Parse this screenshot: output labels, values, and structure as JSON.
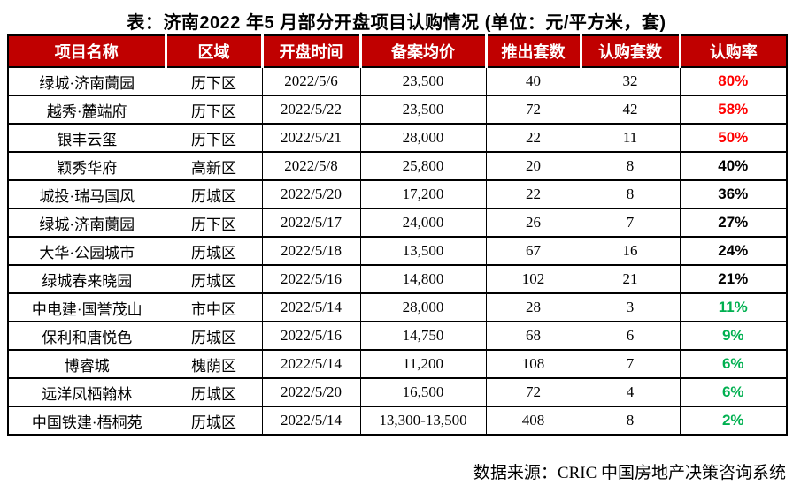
{
  "title": "表：济南2022 年5 月部分开盘项目认购情况 (单位：元/平方米，套)",
  "source": "数据来源：CRIC 中国房地产决策咨询系统",
  "colors": {
    "header_bg": "#C00000",
    "header_text": "#FFFFFF",
    "rate_red": "#FF0000",
    "rate_black": "#000000",
    "rate_green": "#00B050"
  },
  "table": {
    "headers": [
      "项目名称",
      "区域",
      "开盘时间",
      "备案均价",
      "推出套数",
      "认购套数",
      "认购率"
    ],
    "rows": [
      {
        "name": "绿城·济南蘭园",
        "district": "历下区",
        "date": "2022/5/6",
        "price": "23,500",
        "offered": "40",
        "subscribed": "32",
        "rate": "80%",
        "rate_color": "red"
      },
      {
        "name": "越秀·麓端府",
        "district": "历下区",
        "date": "2022/5/22",
        "price": "23,500",
        "offered": "72",
        "subscribed": "42",
        "rate": "58%",
        "rate_color": "red"
      },
      {
        "name": "银丰云玺",
        "district": "历下区",
        "date": "2022/5/21",
        "price": "28,000",
        "offered": "22",
        "subscribed": "11",
        "rate": "50%",
        "rate_color": "red"
      },
      {
        "name": "颖秀华府",
        "district": "高新区",
        "date": "2022/5/8",
        "price": "25,800",
        "offered": "20",
        "subscribed": "8",
        "rate": "40%",
        "rate_color": "black"
      },
      {
        "name": "城投·瑞马国风",
        "district": "历城区",
        "date": "2022/5/20",
        "price": "17,200",
        "offered": "22",
        "subscribed": "8",
        "rate": "36%",
        "rate_color": "black"
      },
      {
        "name": "绿城·济南蘭园",
        "district": "历下区",
        "date": "2022/5/17",
        "price": "24,000",
        "offered": "26",
        "subscribed": "7",
        "rate": "27%",
        "rate_color": "black"
      },
      {
        "name": "大华·公园城市",
        "district": "历城区",
        "date": "2022/5/18",
        "price": "13,500",
        "offered": "67",
        "subscribed": "16",
        "rate": "24%",
        "rate_color": "black"
      },
      {
        "name": "绿城春来晓园",
        "district": "历城区",
        "date": "2022/5/16",
        "price": "14,800",
        "offered": "102",
        "subscribed": "21",
        "rate": "21%",
        "rate_color": "black"
      },
      {
        "name": "中电建·国誉茂山",
        "district": "市中区",
        "date": "2022/5/14",
        "price": "28,000",
        "offered": "28",
        "subscribed": "3",
        "rate": "11%",
        "rate_color": "green"
      },
      {
        "name": "保利和唐悦色",
        "district": "历城区",
        "date": "2022/5/16",
        "price": "14,750",
        "offered": "68",
        "subscribed": "6",
        "rate": "9%",
        "rate_color": "green"
      },
      {
        "name": "博睿城",
        "district": "槐荫区",
        "date": "2022/5/14",
        "price": "11,200",
        "offered": "108",
        "subscribed": "7",
        "rate": "6%",
        "rate_color": "green"
      },
      {
        "name": "远洋凤栖翰林",
        "district": "历城区",
        "date": "2022/5/20",
        "price": "16,500",
        "offered": "72",
        "subscribed": "4",
        "rate": "6%",
        "rate_color": "green"
      },
      {
        "name": "中国铁建·梧桐苑",
        "district": "历城区",
        "date": "2022/5/14",
        "price": "13,300-13,500",
        "offered": "408",
        "subscribed": "8",
        "rate": "2%",
        "rate_color": "green"
      }
    ]
  }
}
